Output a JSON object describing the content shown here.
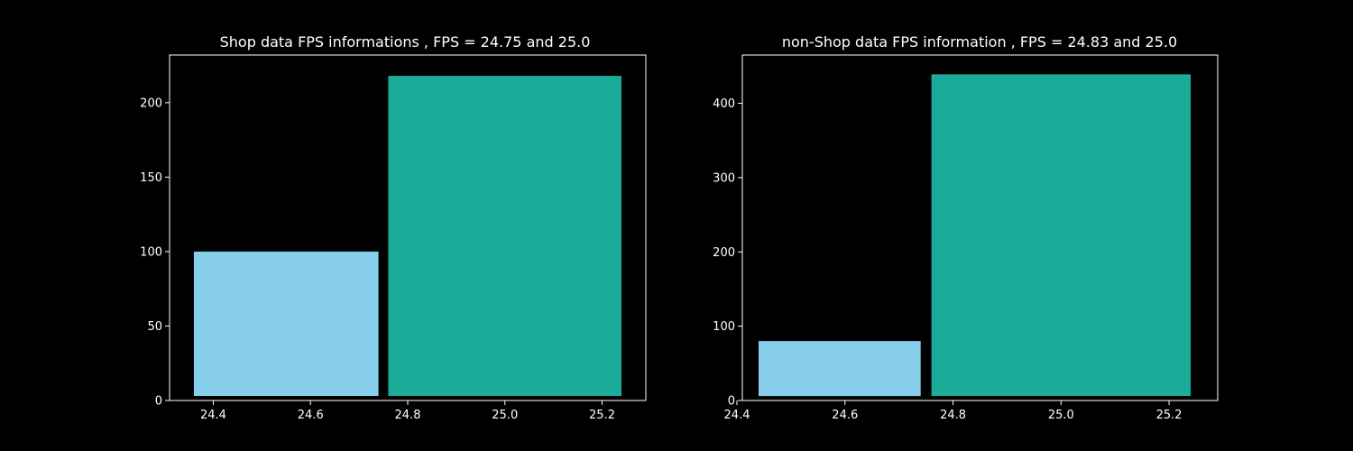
{
  "chart_data": [
    {
      "type": "bar",
      "title": "Shop data FPS informations , FPS = 24.75 and 25.0",
      "xlabel": "",
      "ylabel": "",
      "xlim": [
        24.31,
        25.29
      ],
      "ylim": [
        0,
        232
      ],
      "x_ticks": [
        24.4,
        24.6,
        24.8,
        25.0,
        25.2
      ],
      "x_tick_labels": [
        "24.4",
        "24.6",
        "24.8",
        "25.0",
        "25.2"
      ],
      "y_ticks": [
        0,
        50,
        100,
        150,
        200
      ],
      "y_tick_labels": [
        "0",
        "50",
        "100",
        "150",
        "200"
      ],
      "bars": [
        {
          "x0": 24.36,
          "x1": 24.74,
          "y0": 3,
          "y1": 100,
          "color": "#87ceeb"
        },
        {
          "x0": 24.76,
          "x1": 25.24,
          "y0": 3,
          "y1": 218,
          "color": "#1aab99"
        }
      ],
      "grid": false
    },
    {
      "type": "bar",
      "title": "non-Shop data FPS information , FPS = 24.83 and 25.0",
      "xlabel": "",
      "ylabel": "",
      "xlim": [
        24.41,
        25.29
      ],
      "ylim": [
        0,
        465
      ],
      "x_ticks": [
        24.4,
        24.6,
        24.8,
        25.0,
        25.2
      ],
      "x_tick_labels": [
        "24.4",
        "24.6",
        "24.8",
        "25.0",
        "25.2"
      ],
      "y_ticks": [
        0,
        100,
        200,
        300,
        400
      ],
      "y_tick_labels": [
        "0",
        "100",
        "200",
        "300",
        "400"
      ],
      "bars": [
        {
          "x0": 24.44,
          "x1": 24.74,
          "y0": 6,
          "y1": 80,
          "color": "#87ceeb"
        },
        {
          "x0": 24.76,
          "x1": 25.24,
          "y0": 6,
          "y1": 439,
          "color": "#1aab99"
        }
      ],
      "grid": false
    }
  ]
}
